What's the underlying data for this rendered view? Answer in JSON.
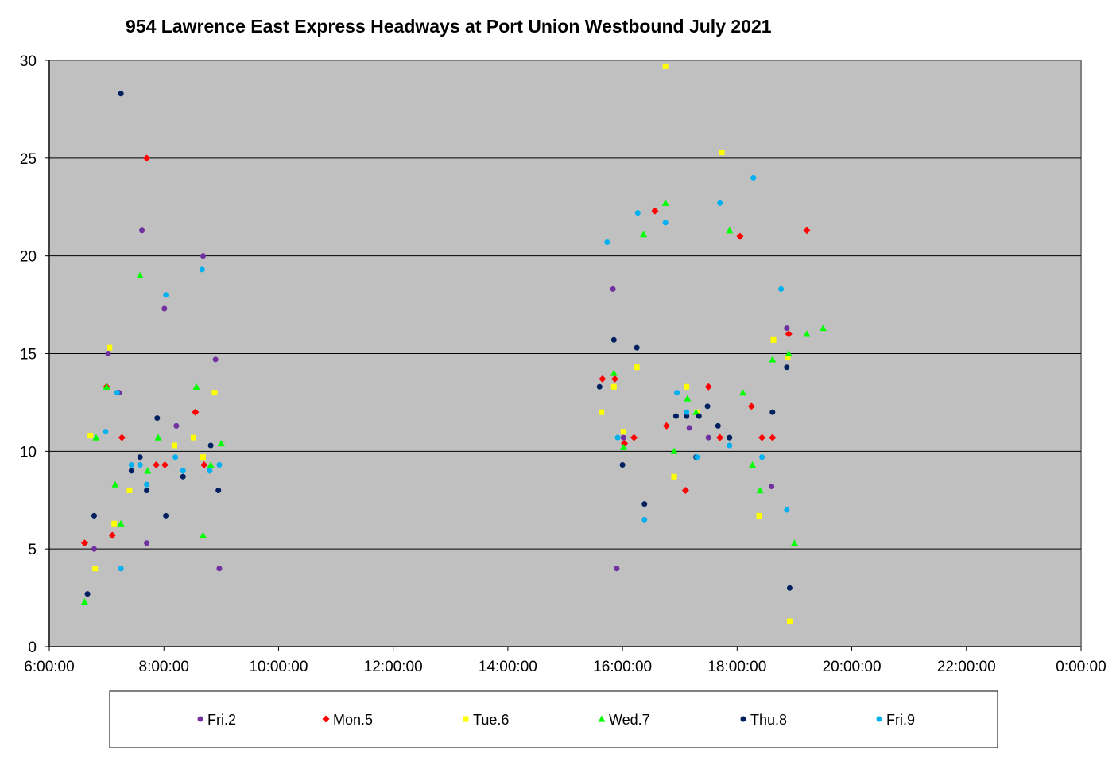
{
  "chart_data": {
    "type": "scatter",
    "title": "954 Lawrence East Express Headways at Port Union Westbound July 2021",
    "xlabel": "",
    "ylabel": "",
    "xlim": [
      "6:00:00",
      "0:00:00"
    ],
    "ylim": [
      0,
      30
    ],
    "x_tick_labels": [
      "6:00:00",
      "8:00:00",
      "10:00:00",
      "12:00:00",
      "14:00:00",
      "16:00:00",
      "18:00:00",
      "20:00:00",
      "22:00:00",
      "0:00:00"
    ],
    "y_tick_labels": [
      "0",
      "5",
      "10",
      "15",
      "20",
      "25",
      "30"
    ],
    "grid": "horizontal",
    "legend_position": "bottom",
    "series": [
      {
        "name": "Fri.2",
        "color": "#7030a0",
        "marker": "circle",
        "points": [
          [
            "6:47:00",
            5.0
          ],
          [
            "7:01:30",
            15.0
          ],
          [
            "7:13:00",
            13.0
          ],
          [
            "7:37:00",
            21.3
          ],
          [
            "7:42:00",
            5.3
          ],
          [
            "8:00:30",
            17.3
          ],
          [
            "8:13:00",
            11.3
          ],
          [
            "8:41:00",
            20.0
          ],
          [
            "8:54:00",
            14.7
          ],
          [
            "8:58:00",
            4.0
          ],
          [
            "15:50:00",
            18.3
          ],
          [
            "15:54:00",
            4.0
          ],
          [
            "16:01:00",
            10.7
          ],
          [
            "17:10:00",
            11.2
          ],
          [
            "17:30:00",
            10.7
          ],
          [
            "18:36:00",
            8.2
          ],
          [
            "18:52:00",
            16.3
          ]
        ]
      },
      {
        "name": "Mon.5",
        "color": "#ff0000",
        "marker": "diamond",
        "points": [
          [
            "6:37:00",
            5.3
          ],
          [
            "7:00:00",
            13.3
          ],
          [
            "7:06:00",
            5.7
          ],
          [
            "7:16:00",
            10.7
          ],
          [
            "7:42:00",
            25.0
          ],
          [
            "7:52:00",
            9.3
          ],
          [
            "8:01:00",
            9.3
          ],
          [
            "8:33:00",
            12.0
          ],
          [
            "8:42:00",
            9.3
          ],
          [
            "15:39:00",
            13.7
          ],
          [
            "15:52:00",
            13.7
          ],
          [
            "16:02:00",
            10.4
          ],
          [
            "16:12:00",
            10.7
          ],
          [
            "16:34:00",
            22.3
          ],
          [
            "16:46:00",
            11.3
          ],
          [
            "17:06:00",
            8.0
          ],
          [
            "17:30:00",
            13.3
          ],
          [
            "17:42:00",
            10.7
          ],
          [
            "18:03:00",
            21.0
          ],
          [
            "18:15:00",
            12.3
          ],
          [
            "18:26:00",
            10.7
          ],
          [
            "18:37:00",
            10.7
          ],
          [
            "18:54:00",
            16.0
          ],
          [
            "19:13:00",
            21.3
          ]
        ]
      },
      {
        "name": "Tue.6",
        "color": "#ffff00",
        "marker": "square",
        "points": [
          [
            "6:43:00",
            10.8
          ],
          [
            "6:48:00",
            4.0
          ],
          [
            "7:03:00",
            15.3
          ],
          [
            "7:08:00",
            6.3
          ],
          [
            "7:24:00",
            8.0
          ],
          [
            "8:11:00",
            10.3
          ],
          [
            "8:31:00",
            10.7
          ],
          [
            "8:41:00",
            9.7
          ],
          [
            "8:53:00",
            13.0
          ],
          [
            "15:38:00",
            12.0
          ],
          [
            "15:51:00",
            13.3
          ],
          [
            "16:01:00",
            11.0
          ],
          [
            "16:15:00",
            14.3
          ],
          [
            "16:45:00",
            29.7
          ],
          [
            "16:54:00",
            8.7
          ],
          [
            "17:07:00",
            13.3
          ],
          [
            "17:18:00",
            12.0
          ],
          [
            "17:44:00",
            25.3
          ],
          [
            "18:23:00",
            6.7
          ],
          [
            "18:38:00",
            15.7
          ],
          [
            "18:53:00",
            14.8
          ],
          [
            "18:55:00",
            1.3
          ]
        ]
      },
      {
        "name": "Wed.7",
        "color": "#00ff00",
        "marker": "triangle",
        "points": [
          [
            "6:37:00",
            2.3
          ],
          [
            "6:49:00",
            10.7
          ],
          [
            "7:00:00",
            13.3
          ],
          [
            "7:09:00",
            8.3
          ],
          [
            "7:15:00",
            6.3
          ],
          [
            "7:35:00",
            19.0
          ],
          [
            "7:43:00",
            9.0
          ],
          [
            "7:54:00",
            10.7
          ],
          [
            "8:34:00",
            13.3
          ],
          [
            "8:41:00",
            5.7
          ],
          [
            "8:49:00",
            9.3
          ],
          [
            "9:00:00",
            10.4
          ],
          [
            "15:51:00",
            14.0
          ],
          [
            "16:01:00",
            10.2
          ],
          [
            "16:22:00",
            21.1
          ],
          [
            "16:45:00",
            22.7
          ],
          [
            "16:54:00",
            10.0
          ],
          [
            "17:08:00",
            12.7
          ],
          [
            "17:17:00",
            12.0
          ],
          [
            "17:52:00",
            21.3
          ],
          [
            "18:06:00",
            13.0
          ],
          [
            "18:16:00",
            9.3
          ],
          [
            "18:24:00",
            8.0
          ],
          [
            "18:37:00",
            14.7
          ],
          [
            "18:54:00",
            15.0
          ],
          [
            "19:00:00",
            5.3
          ],
          [
            "19:13:00",
            16.0
          ],
          [
            "19:30:00",
            16.3
          ]
        ]
      },
      {
        "name": "Thu.8",
        "color": "#002060",
        "marker": "circle",
        "points": [
          [
            "6:40:00",
            2.7
          ],
          [
            "6:47:00",
            6.7
          ],
          [
            "7:15:00",
            28.3
          ],
          [
            "7:26:00",
            9.0
          ],
          [
            "7:35:00",
            9.7
          ],
          [
            "7:42:00",
            8.0
          ],
          [
            "7:53:00",
            11.7
          ],
          [
            "8:02:00",
            6.7
          ],
          [
            "8:20:00",
            8.7
          ],
          [
            "8:49:00",
            10.3
          ],
          [
            "8:57:00",
            8.0
          ],
          [
            "15:36:00",
            13.3
          ],
          [
            "15:51:00",
            15.7
          ],
          [
            "16:00:00",
            9.3
          ],
          [
            "16:15:00",
            15.3
          ],
          [
            "16:23:00",
            7.3
          ],
          [
            "16:56:00",
            11.8
          ],
          [
            "17:07:00",
            11.8
          ],
          [
            "17:17:00",
            9.7
          ],
          [
            "17:20:00",
            11.8
          ],
          [
            "17:29:00",
            12.3
          ],
          [
            "17:40:00",
            11.3
          ],
          [
            "17:52:00",
            10.7
          ],
          [
            "18:37:00",
            12.0
          ],
          [
            "18:52:00",
            14.3
          ],
          [
            "18:55:00",
            3.0
          ]
        ]
      },
      {
        "name": "Fri.9",
        "color": "#00b0f0",
        "marker": "circle",
        "points": [
          [
            "6:59:00",
            11.0
          ],
          [
            "7:11:00",
            13.0
          ],
          [
            "7:15:00",
            4.0
          ],
          [
            "7:26:00",
            9.3
          ],
          [
            "7:35:00",
            9.3
          ],
          [
            "7:42:00",
            8.3
          ],
          [
            "8:02:00",
            18.0
          ],
          [
            "8:12:00",
            9.7
          ],
          [
            "8:20:00",
            9.0
          ],
          [
            "8:40:00",
            19.3
          ],
          [
            "8:48:00",
            9.0
          ],
          [
            "8:58:00",
            9.3
          ],
          [
            "15:44:00",
            20.7
          ],
          [
            "15:55:00",
            10.7
          ],
          [
            "16:16:00",
            22.2
          ],
          [
            "16:23:00",
            6.5
          ],
          [
            "16:45:00",
            21.7
          ],
          [
            "16:57:00",
            13.0
          ],
          [
            "17:07:00",
            12.0
          ],
          [
            "17:18:00",
            9.7
          ],
          [
            "17:42:00",
            22.7
          ],
          [
            "17:52:00",
            10.3
          ],
          [
            "18:17:00",
            24.0
          ],
          [
            "18:26:00",
            9.7
          ],
          [
            "18:46:00",
            18.3
          ],
          [
            "18:52:00",
            7.0
          ]
        ]
      }
    ]
  }
}
